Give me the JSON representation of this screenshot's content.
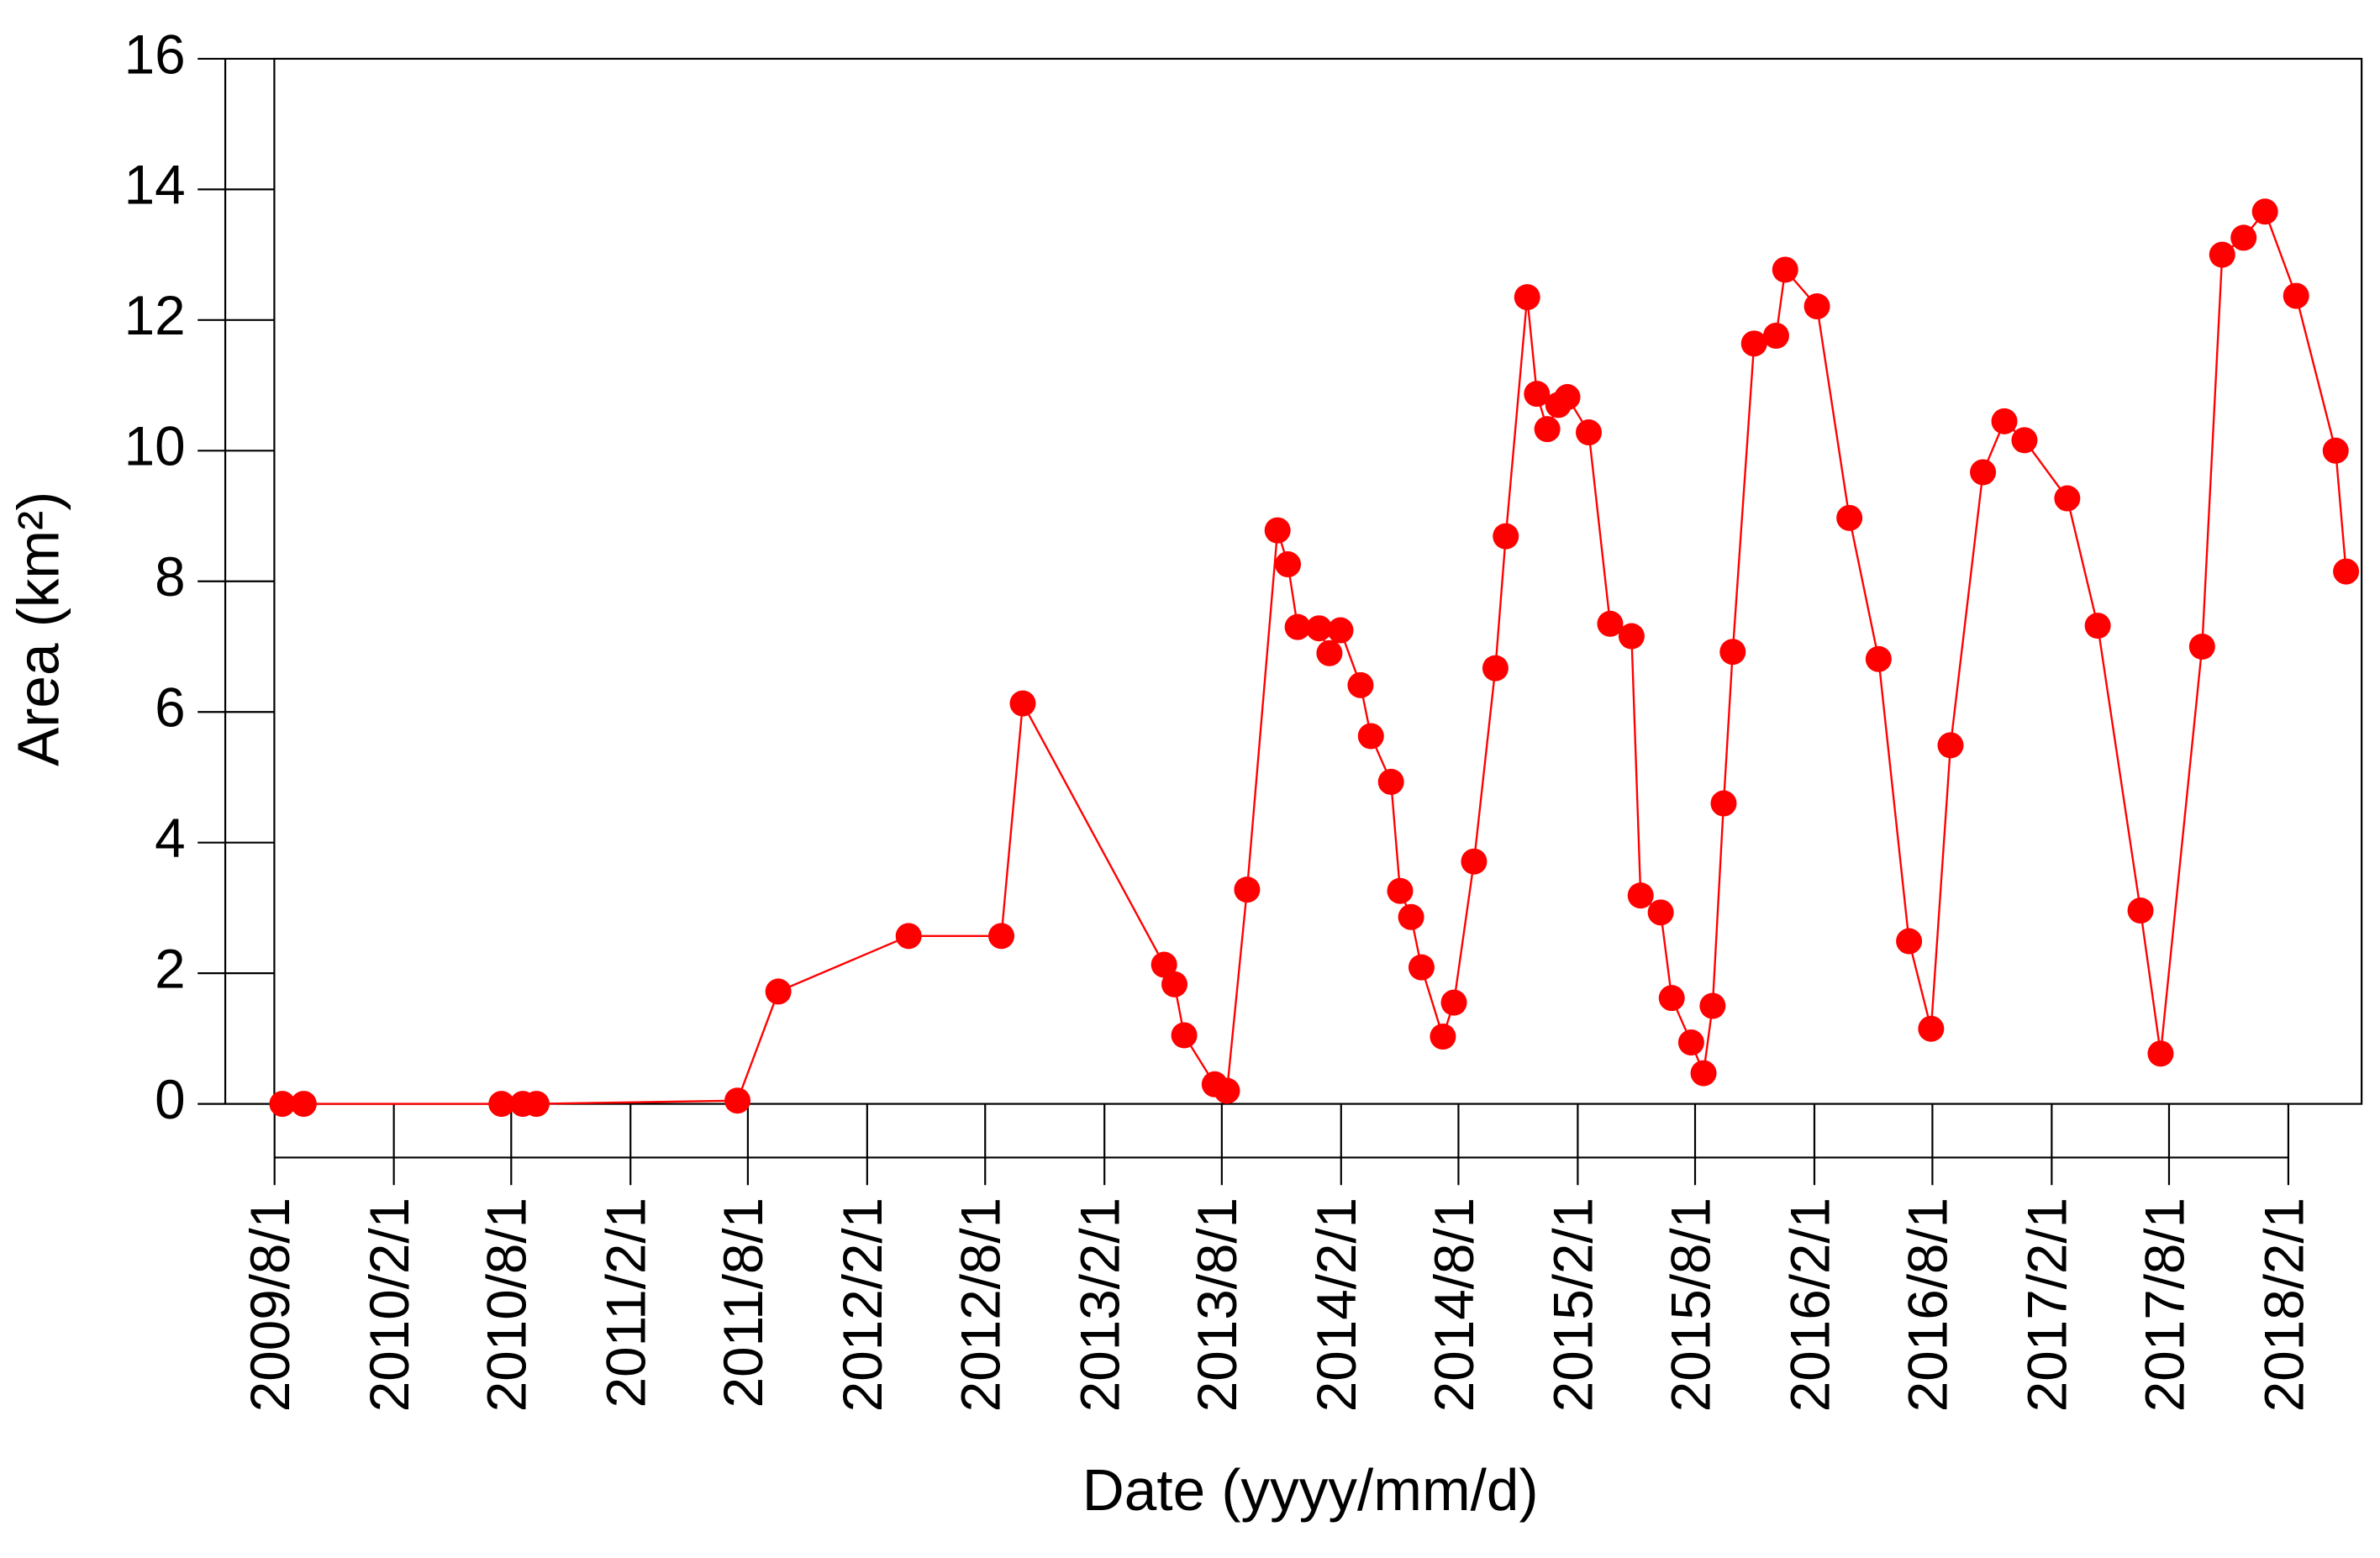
{
  "chart_data": {
    "type": "line",
    "x_label": "Date (yyyy/mm/d)",
    "y_label": "Area (km²)",
    "x": [
      "2009/8/13",
      "2009/9/15",
      "2010/7/17",
      "2010/8/19",
      "2010/9/9",
      "2011/7/16",
      "2011/9/17",
      "2012/4/5",
      "2012/8/26",
      "2012/9/28",
      "2013/5/4",
      "2013/5/20",
      "2013/6/4",
      "2013/7/21",
      "2013/8/9",
      "2013/9/9",
      "2013/10/26",
      "2013/11/11",
      "2013/11/26",
      "2013/12/29",
      "2014/1/14",
      "2014/1/31",
      "2014/3/3",
      "2014/3/19",
      "2014/4/19",
      "2014/5/3",
      "2014/5/20",
      "2014/6/5",
      "2014/7/8",
      "2014/7/25",
      "2014/8/25",
      "2014/9/27",
      "2014/10/13",
      "2014/11/15",
      "2014/11/30",
      "2014/12/16",
      "2015/1/2",
      "2015/1/16",
      "2015/2/18",
      "2015/3/23",
      "2015/4/25",
      "2015/5/9",
      "2015/6/9",
      "2015/6/26",
      "2015/7/26",
      "2015/8/14",
      "2015/8/28",
      "2015/9/14",
      "2015/9/28",
      "2015/10/31",
      "2015/12/4",
      "2015/12/18",
      "2016/2/5",
      "2016/3/26",
      "2016/5/10",
      "2016/6/26",
      "2016/7/30",
      "2016/8/29",
      "2016/10/18",
      "2016/11/20",
      "2016/12/21",
      "2017/2/25",
      "2017/4/13",
      "2017/6/18",
      "2017/7/19",
      "2017/9/21",
      "2017/10/22",
      "2017/11/24",
      "2017/12/27",
      "2018/2/13",
      "2018/4/15",
      "2018/5/1"
    ],
    "series": [
      {
        "color": "#ff0000",
        "values": [
          0,
          0,
          0,
          0,
          0,
          0.05,
          1.72,
          2.57,
          2.57,
          6.13,
          2.13,
          1.83,
          1.05,
          0.3,
          0.2,
          3.28,
          8.78,
          8.26,
          7.3,
          7.28,
          6.9,
          7.25,
          6.41,
          5.63,
          4.93,
          3.26,
          2.86,
          2.09,
          1.03,
          1.55,
          3.71,
          6.67,
          8.69,
          12.35,
          10.87,
          10.33,
          10.7,
          10.82,
          10.28,
          7.35,
          7.16,
          3.19,
          2.93,
          1.62,
          0.94,
          0.47,
          1.5,
          4.6,
          6.92,
          11.64,
          11.76,
          12.77,
          12.21,
          8.97,
          6.81,
          2.49,
          1.15,
          5.49,
          9.67,
          10.45,
          10.16,
          9.27,
          7.32,
          2.96,
          0.77,
          7.0,
          13.0,
          13.26,
          13.66,
          12.37,
          10.0,
          8.15
        ]
      }
    ],
    "xlim": [
      "2009/5/17",
      "2018/5/25"
    ],
    "xticks": [
      "2009/8/1",
      "2010/2/1",
      "2010/8/1",
      "2011/2/1",
      "2011/8/1",
      "2012/2/1",
      "2012/8/1",
      "2013/2/1",
      "2013/8/1",
      "2014/2/1",
      "2014/8/1",
      "2015/2/1",
      "2015/8/1",
      "2016/2/1",
      "2016/8/1",
      "2017/2/1",
      "2017/8/1",
      "2018/2/1"
    ],
    "ylim": [
      0,
      16
    ],
    "yticks": [
      0,
      2,
      4,
      6,
      8,
      10,
      12,
      14,
      16
    ],
    "grid": false
  }
}
